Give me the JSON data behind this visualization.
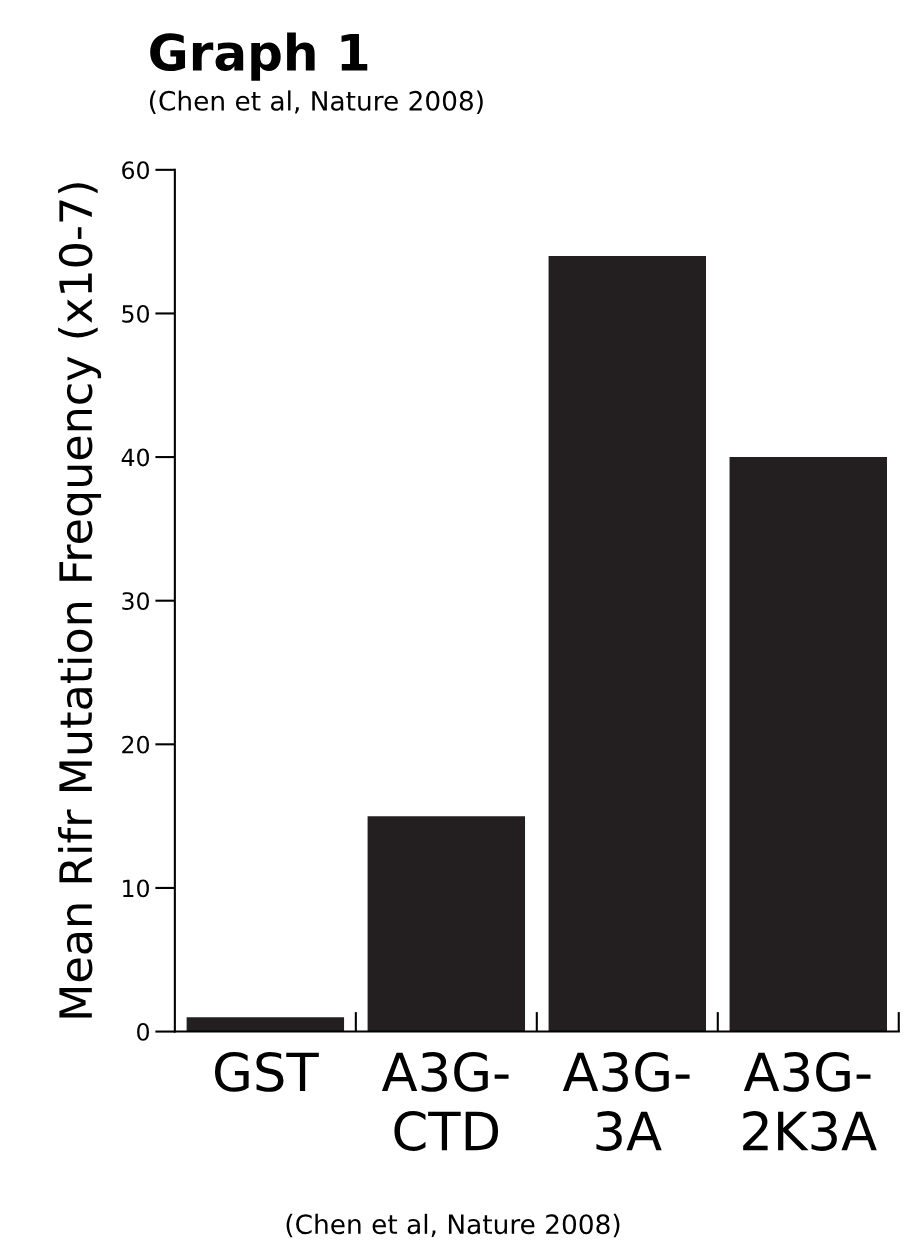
{
  "chart_data": {
    "type": "bar",
    "title": "Graph 1",
    "subtitle": "(Chen et al, Nature 2008)",
    "ylabel": "Mean Rifr Mutation Frequency (x10-7)",
    "categories": [
      "GST",
      "A3G-CTD",
      "A3G-3A",
      "A3G-2K3A"
    ],
    "values": [
      1,
      15,
      54,
      40
    ],
    "color": "#231f20",
    "ylim": [
      0,
      60
    ],
    "yticks": [
      0,
      10,
      20,
      30,
      40,
      50,
      60
    ],
    "grid": false,
    "annotations": [
      "(Chen et al, Nature 2008)"
    ]
  }
}
